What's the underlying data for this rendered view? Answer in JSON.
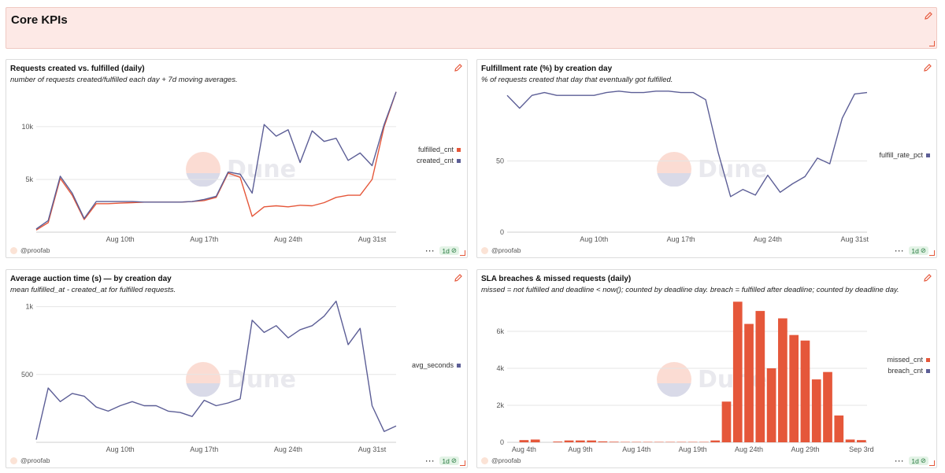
{
  "header": {
    "title": "Core KPIs"
  },
  "watermark": "Dune",
  "footer": {
    "user": "@proofab",
    "dots": "···",
    "badge": "1d"
  },
  "colors": {
    "orange": "#e5573a",
    "navy": "#5c5e96",
    "grid": "#e6e6e6"
  },
  "charts": [
    {
      "title": "Requests created vs. fulfilled (daily)",
      "subtitle": "number of requests created/fulfilled each day + 7d moving averages.",
      "legend": [
        {
          "name": "fulfilled_cnt",
          "color": "#e5573a"
        },
        {
          "name": "created_cnt",
          "color": "#5c5e96"
        }
      ]
    },
    {
      "title": "Fulfillment rate (%) by creation day",
      "subtitle": "% of requests created that day that eventually got fulfilled.",
      "legend": [
        {
          "name": "fulfill_rate_pct",
          "color": "#5c5e96"
        }
      ]
    },
    {
      "title": "Average auction time (s) — by creation day",
      "subtitle": "mean fulfilled_at - created_at for fulfilled requests.",
      "legend": [
        {
          "name": "avg_seconds",
          "color": "#5c5e96"
        }
      ]
    },
    {
      "title": "SLA breaches & missed requests (daily)",
      "subtitle": "missed = not fulfilled and deadline < now(); counted by deadline day. breach = fulfilled after deadline; counted by deadline day.",
      "legend": [
        {
          "name": "missed_cnt",
          "color": "#e5573a"
        },
        {
          "name": "breach_cnt",
          "color": "#5c5e96"
        }
      ]
    }
  ],
  "chart_data": [
    {
      "type": "line",
      "title": "Requests created vs. fulfilled (daily)",
      "x_start_label": "Aug 3",
      "ylim": [
        0,
        13500
      ],
      "yticks": [
        {
          "v": 5000,
          "label": "5k"
        },
        {
          "v": 10000,
          "label": "10k"
        }
      ],
      "xticks": [
        {
          "i": 7,
          "label": "Aug 10th"
        },
        {
          "i": 14,
          "label": "Aug 17th"
        },
        {
          "i": 21,
          "label": "Aug 24th"
        },
        {
          "i": 28,
          "label": "Aug 31st"
        }
      ],
      "series": [
        {
          "name": "fulfilled_cnt",
          "color": "#e5573a",
          "values": [
            200,
            900,
            5100,
            3500,
            1200,
            2700,
            2700,
            2750,
            2800,
            2850,
            2850,
            2850,
            2850,
            2900,
            3000,
            3300,
            5600,
            5200,
            1500,
            2400,
            2500,
            2400,
            2550,
            2500,
            2800,
            3300,
            3500,
            3500,
            5000,
            10000,
            13300
          ]
        },
        {
          "name": "created_cnt",
          "color": "#5c5e96",
          "values": [
            300,
            1100,
            5300,
            3700,
            1300,
            2900,
            2900,
            2900,
            2900,
            2850,
            2850,
            2850,
            2850,
            2900,
            3100,
            3400,
            5700,
            5500,
            3700,
            10200,
            9100,
            9700,
            6600,
            9600,
            8600,
            8900,
            6800,
            7500,
            6300,
            10200,
            13300
          ]
        }
      ]
    },
    {
      "type": "line",
      "title": "Fulfillment rate (%) by creation day",
      "x_start_label": "Aug 3",
      "ylim": [
        0,
        100
      ],
      "yticks": [
        {
          "v": 0,
          "label": "0"
        },
        {
          "v": 50,
          "label": "50"
        }
      ],
      "xticks": [
        {
          "i": 7,
          "label": "Aug 10th"
        },
        {
          "i": 14,
          "label": "Aug 17th"
        },
        {
          "i": 21,
          "label": "Aug 24th"
        },
        {
          "i": 28,
          "label": "Aug 31st"
        }
      ],
      "series": [
        {
          "name": "fulfill_rate_pct",
          "color": "#5c5e96",
          "values": [
            96,
            87,
            96,
            98,
            96,
            96,
            96,
            96,
            98,
            99,
            98,
            98,
            99,
            99,
            98,
            98,
            93,
            56,
            25,
            30,
            26,
            40,
            28,
            34,
            39,
            52,
            48,
            80,
            97,
            98
          ]
        }
      ]
    },
    {
      "type": "line",
      "title": "Average auction time (s) — by creation day",
      "x_start_label": "Aug 3",
      "ylim": [
        0,
        1050
      ],
      "yticks": [
        {
          "v": 500,
          "label": "500"
        },
        {
          "v": 1000,
          "label": "1k"
        }
      ],
      "xticks": [
        {
          "i": 7,
          "label": "Aug 10th"
        },
        {
          "i": 14,
          "label": "Aug 17th"
        },
        {
          "i": 21,
          "label": "Aug 24th"
        },
        {
          "i": 28,
          "label": "Aug 31st"
        }
      ],
      "series": [
        {
          "name": "avg_seconds",
          "color": "#5c5e96",
          "values": [
            20,
            400,
            300,
            360,
            340,
            260,
            230,
            270,
            300,
            270,
            270,
            230,
            220,
            190,
            310,
            270,
            290,
            320,
            900,
            810,
            860,
            770,
            830,
            860,
            930,
            1040,
            720,
            840,
            270,
            80,
            120
          ]
        }
      ]
    },
    {
      "type": "bar",
      "title": "SLA breaches & missed requests (daily)",
      "x_start_label": "Aug 3",
      "ylim": [
        0,
        7700
      ],
      "yticks": [
        {
          "v": 0,
          "label": "0"
        },
        {
          "v": 2000,
          "label": "2k"
        },
        {
          "v": 4000,
          "label": "4k"
        },
        {
          "v": 6000,
          "label": "6k"
        }
      ],
      "xticks": [
        {
          "i": 1,
          "label": "Aug 4th"
        },
        {
          "i": 6,
          "label": "Aug 9th"
        },
        {
          "i": 11,
          "label": "Aug 14th"
        },
        {
          "i": 16,
          "label": "Aug 19th"
        },
        {
          "i": 21,
          "label": "Aug 24th"
        },
        {
          "i": 26,
          "label": "Aug 29th"
        },
        {
          "i": 31,
          "label": "Sep 3rd"
        }
      ],
      "series": [
        {
          "name": "missed_cnt",
          "color": "#e5573a",
          "values": [
            0,
            120,
            150,
            0,
            40,
            100,
            100,
            100,
            50,
            30,
            20,
            20,
            20,
            20,
            20,
            20,
            20,
            20,
            100,
            2200,
            7600,
            6400,
            7100,
            4000,
            6700,
            5800,
            5500,
            3400,
            3800,
            1450,
            150,
            120
          ]
        },
        {
          "name": "breach_cnt",
          "color": "#5c5e96",
          "values": [
            0,
            0,
            0,
            0,
            0,
            0,
            0,
            0,
            0,
            0,
            0,
            0,
            0,
            0,
            0,
            0,
            0,
            0,
            0,
            0,
            0,
            0,
            0,
            0,
            0,
            0,
            0,
            0,
            0,
            0,
            0,
            0
          ]
        }
      ]
    }
  ]
}
